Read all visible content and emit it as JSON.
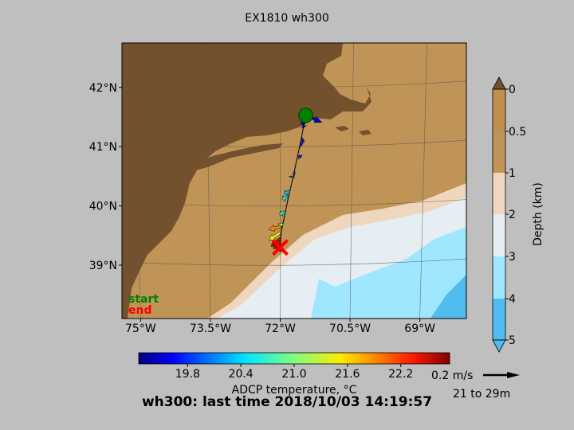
{
  "title": "EX1810 wh300",
  "footer": "wh300: last time 2018/10/03 14:19:57",
  "legend": {
    "start": "start",
    "end": "end",
    "start_color": "#008000",
    "end_color": "#ff0000"
  },
  "colors": {
    "background": "#bfbfbf",
    "land": "#74512d",
    "depth_0_05": "#bf8f50",
    "depth_05_1": "#bf9456",
    "depth_1_2": "#efd7bf",
    "depth_2_3": "#e6eef3",
    "depth_3_4": "#9fe6ff",
    "depth_4_5": "#4fbbee"
  },
  "chart_data": [
    {
      "type": "map",
      "title": "EX1810 wh300",
      "x_ticks": [
        {
          "value": -75,
          "label": "75°W"
        },
        {
          "value": -73.5,
          "label": "73.5°W"
        },
        {
          "value": -72,
          "label": "72°W"
        },
        {
          "value": -70.5,
          "label": "70.5°W"
        },
        {
          "value": -69,
          "label": "69°W"
        }
      ],
      "y_ticks": [
        {
          "value": 42,
          "label": "42°N"
        },
        {
          "value": 41,
          "label": "41°N"
        },
        {
          "value": 40,
          "label": "40°N"
        },
        {
          "value": 39,
          "label": "39°N"
        }
      ],
      "xlim": [
        -75.4,
        -68.0
      ],
      "ylim": [
        38.1,
        42.75
      ],
      "start": {
        "lon": -71.45,
        "lat": 41.53
      },
      "end": {
        "lon": -72.0,
        "lat": 39.3
      },
      "track": [
        {
          "lon": -71.45,
          "lat": 41.53
        },
        {
          "lon": -71.57,
          "lat": 41.05
        },
        {
          "lon": -71.72,
          "lat": 40.5
        },
        {
          "lon": -71.85,
          "lat": 40.05
        },
        {
          "lon": -71.98,
          "lat": 39.55
        },
        {
          "lon": -72.0,
          "lat": 39.3
        }
      ],
      "vectors": [
        {
          "lon": -71.45,
          "lat": 41.53,
          "u": 1.74,
          "v": -0.77,
          "temp": 19.5
        },
        {
          "lon": -71.45,
          "lat": 41.53,
          "u": 0.36,
          "v": 0.73,
          "temp": 19.6
        },
        {
          "lon": -71.45,
          "lat": 41.53,
          "u": -0.2,
          "v": 0.37,
          "temp": 19.5
        },
        {
          "lon": -71.45,
          "lat": 41.53,
          "u": -0.34,
          "v": 0.05,
          "temp": 19.6
        },
        {
          "lon": -71.45,
          "lat": 41.53,
          "u": 0.22,
          "v": 0.1,
          "temp": 19.6
        },
        {
          "lon": -71.5,
          "lat": 41.4,
          "u": -0.21,
          "v": -0.17,
          "temp": 19.6
        },
        {
          "lon": -71.5,
          "lat": 41.35,
          "u": 0.08,
          "v": -0.15,
          "temp": 19.6
        },
        {
          "lon": -71.55,
          "lat": 41.1,
          "u": 0.31,
          "v": 0.1,
          "temp": 19.7
        },
        {
          "lon": -71.57,
          "lat": 41.05,
          "u": 0.22,
          "v": -0.13,
          "temp": 19.7
        },
        {
          "lon": -71.6,
          "lat": 40.85,
          "u": 0.22,
          "v": -0.22,
          "temp": 19.7
        },
        {
          "lon": -71.72,
          "lat": 40.55,
          "u": 0.21,
          "v": -0.02,
          "temp": 19.9
        },
        {
          "lon": -71.75,
          "lat": 40.5,
          "u": -0.04,
          "v": -0.13,
          "temp": 19.9
        },
        {
          "lon": -71.8,
          "lat": 40.25,
          "u": -0.54,
          "v": -0.32,
          "temp": 20.3
        },
        {
          "lon": -71.85,
          "lat": 40.15,
          "u": -0.54,
          "v": -0.24,
          "temp": 20.5
        },
        {
          "lon": -71.9,
          "lat": 39.9,
          "u": -0.57,
          "v": -0.28,
          "temp": 20.6
        },
        {
          "lon": -71.95,
          "lat": 39.7,
          "u": -0.39,
          "v": -0.33,
          "temp": 21.1
        },
        {
          "lon": -71.98,
          "lat": 39.65,
          "u": -1.32,
          "v": -0.3,
          "temp": 21.9
        },
        {
          "lon": -72.0,
          "lat": 39.55,
          "u": -1.22,
          "v": -0.82,
          "temp": 21.4
        },
        {
          "lon": -72.0,
          "lat": 39.45,
          "u": -0.98,
          "v": -0.86,
          "temp": 22.5
        },
        {
          "lon": -72.0,
          "lat": 39.4,
          "u": -0.74,
          "v": -0.8,
          "temp": 22.5
        },
        {
          "lon": -72.0,
          "lat": 39.35,
          "u": -0.4,
          "v": -0.46,
          "temp": 22.4
        },
        {
          "lon": -72.0,
          "lat": 39.3,
          "u": -0.16,
          "v": -0.34,
          "temp": 22.3
        },
        {
          "lon": -72.0,
          "lat": 39.3,
          "u": -0.27,
          "v": -0.38,
          "temp": 22.3
        },
        {
          "lon": -72.0,
          "lat": 39.3,
          "u": -0.04,
          "v": -0.32,
          "temp": 22.4
        }
      ]
    },
    {
      "type": "colorbar",
      "orientation": "horizontal",
      "label": "ADCP temperature, °C",
      "range": [
        19.25,
        22.75
      ],
      "ticks": [
        {
          "value": 19.8,
          "label": "19.8"
        },
        {
          "value": 20.4,
          "label": "20.4"
        },
        {
          "value": 21.0,
          "label": "21.0"
        },
        {
          "value": 21.6,
          "label": "21.6"
        },
        {
          "value": 22.2,
          "label": "22.2"
        }
      ],
      "colormap": "jet"
    },
    {
      "type": "colorbar",
      "orientation": "vertical",
      "label": "Depth (km)",
      "range": [
        0,
        5
      ],
      "ticks": [
        {
          "value": 0,
          "label": "0"
        },
        {
          "value": 0.5,
          "label": "0.5"
        },
        {
          "value": 1,
          "label": "1"
        },
        {
          "value": 2,
          "label": "2"
        },
        {
          "value": 3,
          "label": "3"
        },
        {
          "value": 4,
          "label": "4"
        },
        {
          "value": 5,
          "label": "5"
        }
      ],
      "bands": [
        {
          "from": 0,
          "to": 0.5,
          "color": "#bf8f50"
        },
        {
          "from": 0.5,
          "to": 1,
          "color": "#bf9456"
        },
        {
          "from": 1,
          "to": 2,
          "color": "#efd7bf"
        },
        {
          "from": 2,
          "to": 3,
          "color": "#e6eef3"
        },
        {
          "from": 3,
          "to": 4,
          "color": "#9fe6ff"
        },
        {
          "from": 4,
          "to": 5,
          "color": "#4fbbee"
        }
      ]
    }
  ],
  "scale": {
    "label": "0.2 m/s",
    "depth_range": "21 to 29m",
    "value": 0.2
  }
}
